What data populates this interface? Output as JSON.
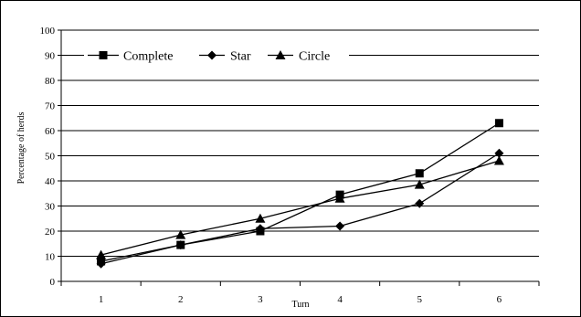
{
  "chart_data": {
    "type": "line",
    "title": "",
    "xlabel": "Turn",
    "ylabel": "Percentage of herds",
    "x": [
      1,
      2,
      3,
      4,
      5,
      6
    ],
    "ylim": [
      0,
      100
    ],
    "yticks": [
      0,
      10,
      20,
      30,
      40,
      50,
      60,
      70,
      80,
      90,
      100
    ],
    "grid": true,
    "legend_position": "top",
    "series": [
      {
        "name": "Complete",
        "marker": "square",
        "values": [
          8,
          14.5,
          20,
          34.5,
          43,
          63
        ]
      },
      {
        "name": "Star",
        "marker": "diamond",
        "values": [
          7,
          14.5,
          21,
          22,
          31,
          51
        ]
      },
      {
        "name": "Circle",
        "marker": "triangle",
        "values": [
          10.5,
          18.5,
          25,
          33,
          38.5,
          48
        ]
      }
    ]
  }
}
